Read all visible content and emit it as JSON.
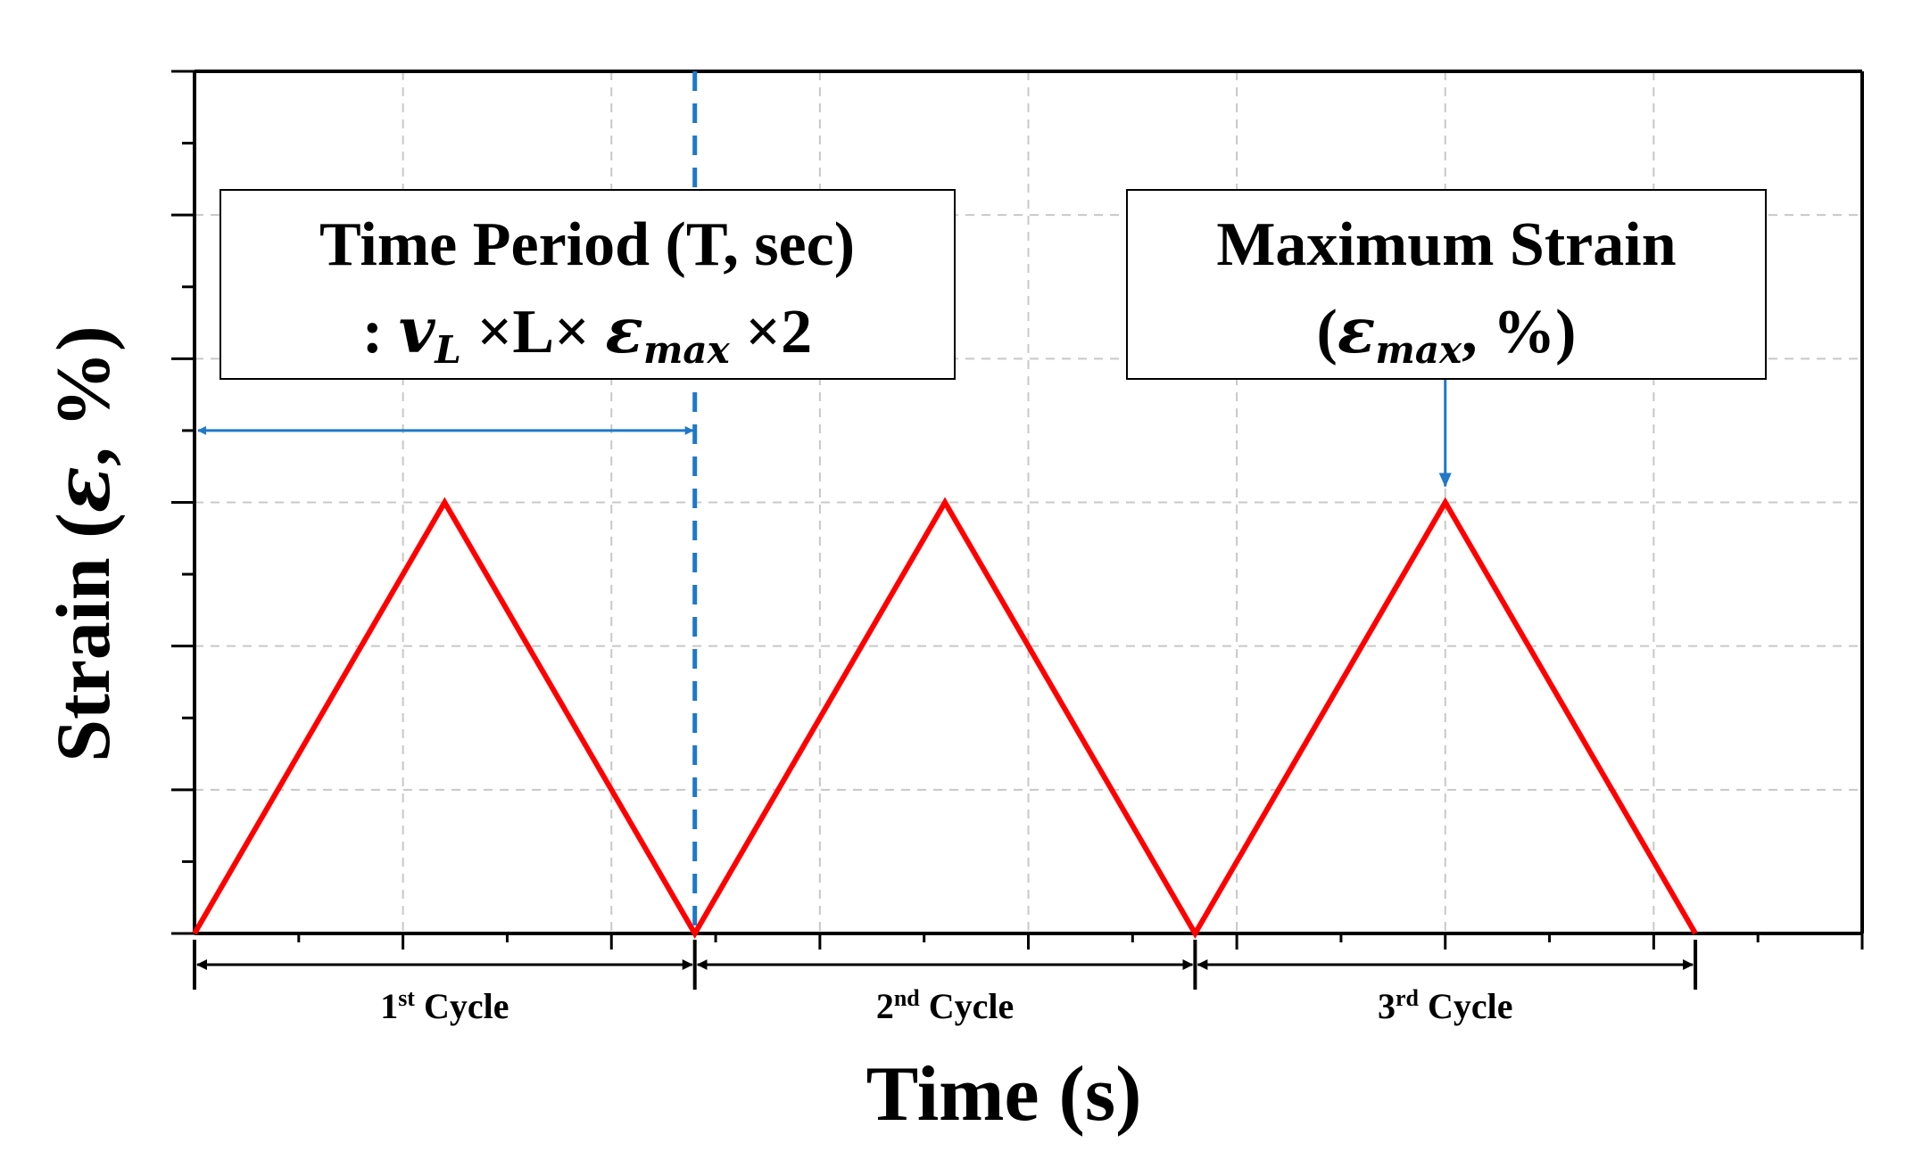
{
  "chart_data": {
    "type": "line",
    "xlabel": "Time (s)",
    "ylabel_main": "Strain (",
    "ylabel_symbol": "ε",
    "ylabel_tail": ", %)",
    "xlim": [
      0,
      4
    ],
    "ylim": [
      0,
      6
    ],
    "grid": true,
    "x_major_ticks": [
      0.5,
      1,
      1.5,
      2,
      2.5,
      3,
      3.5,
      4
    ],
    "y_major_ticks": [
      0,
      1,
      2,
      3,
      4,
      5,
      6
    ],
    "series": [
      {
        "color": "#ff0000",
        "x": [
          0,
          0.6,
          1.2,
          1.8,
          2.4,
          3.0,
          3.6
        ],
        "y": [
          0,
          3,
          0,
          3,
          0,
          3,
          0
        ]
      }
    ],
    "annotations": {
      "period_box": {
        "line1": "Time Period (T, sec)",
        "line2_prefix": ": ",
        "v_symbol": "v",
        "v_sub": "L",
        "times1": " ×L× ",
        "eps_symbol": "ε",
        "eps_sub": "max",
        "times2": " ×2"
      },
      "max_box": {
        "line1": "Maximum Strain",
        "open": "(",
        "eps_symbol": "ε",
        "eps_sub": "max",
        "close": ", %)"
      },
      "period_marker_x": 1.2,
      "period_arrow_y": 3.5,
      "max_arrow_x": 3.0,
      "cycles": [
        {
          "num": "1",
          "sup": "st",
          "word": " Cycle",
          "x_start": 0,
          "x_end": 1.2
        },
        {
          "num": "2",
          "sup": "nd",
          "word": " Cycle",
          "x_start": 1.2,
          "x_end": 2.4
        },
        {
          "num": "3",
          "sup": "rd",
          "word": " Cycle",
          "x_start": 2.4,
          "x_end": 3.6
        }
      ]
    }
  },
  "colors": {
    "line": "#ff0000",
    "annotation": "#1f78c8",
    "axis": "#000000",
    "grid": "#c8c8c8"
  }
}
